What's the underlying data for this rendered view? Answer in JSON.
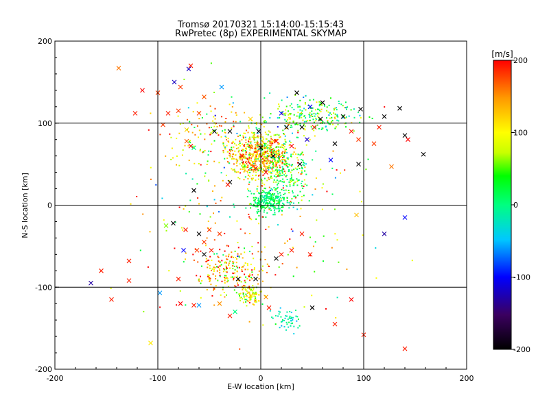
{
  "chart_data": {
    "type": "scatter",
    "title": "Tromsø 20170321 15:14:00-15:15:43",
    "subtitle": "RwPretec (8p) EXPERIMENTAL SKYMAP",
    "xlabel": "E-W location [km]",
    "ylabel": "N-S location [km]",
    "xlim": [
      -200,
      200
    ],
    "ylim": [
      -200,
      200
    ],
    "xticks": [
      "-200",
      "-100",
      "0",
      "100",
      "200"
    ],
    "yticks": [
      "-200",
      "-100",
      "0",
      "100",
      "200"
    ],
    "grid": "major lines at -100, 0, 100",
    "colorbar": {
      "label": "[m/s]",
      "range": [
        -200,
        200
      ],
      "ticks": [
        "-200",
        "-100",
        "0",
        "100",
        "200"
      ],
      "colormap": [
        "#000000",
        "#3b0060",
        "#0000ff",
        "#00c8ff",
        "#00ff80",
        "#00ff00",
        "#c8ff00",
        "#ffff00",
        "#ff9900",
        "#ff0000"
      ]
    },
    "clusters": [
      {
        "cx": 0,
        "cy": 60,
        "sx": 22,
        "sy": 20,
        "n": 650,
        "vmean": 120,
        "vsd": 70
      },
      {
        "cx": 8,
        "cy": 5,
        "sx": 12,
        "sy": 10,
        "n": 260,
        "vmean": 10,
        "vsd": 25
      },
      {
        "cx": 50,
        "cy": 110,
        "sx": 30,
        "sy": 15,
        "n": 230,
        "vmean": 40,
        "vsd": 70
      },
      {
        "cx": 25,
        "cy": 40,
        "sx": 15,
        "sy": 25,
        "n": 180,
        "vmean": 20,
        "vsd": 45
      },
      {
        "cx": -30,
        "cy": -80,
        "sx": 25,
        "sy": 22,
        "n": 220,
        "vmean": 140,
        "vsd": 80
      },
      {
        "cx": -10,
        "cy": -110,
        "sx": 8,
        "sy": 8,
        "n": 90,
        "vmean": 90,
        "vsd": 50
      },
      {
        "cx": 25,
        "cy": -140,
        "sx": 10,
        "sy": 10,
        "n": 50,
        "vmean": -10,
        "vsd": 30
      },
      {
        "cx": -40,
        "cy": 90,
        "sx": 35,
        "sy": 25,
        "n": 130,
        "vmean": 100,
        "vsd": 90
      },
      {
        "cx": 0,
        "cy": 0,
        "sx": 80,
        "sy": 90,
        "n": 260,
        "vmean": 100,
        "vsd": 120
      }
    ],
    "crosses": [
      {
        "x": -138,
        "y": 167,
        "v": 160
      },
      {
        "x": -68,
        "y": 170,
        "v": 190
      },
      {
        "x": -70,
        "y": 166,
        "v": -120
      },
      {
        "x": -84,
        "y": 150,
        "v": -120
      },
      {
        "x": -78,
        "y": 144,
        "v": 180
      },
      {
        "x": -55,
        "y": 132,
        "v": 170
      },
      {
        "x": -38,
        "y": 144,
        "v": -60
      },
      {
        "x": -100,
        "y": 137,
        "v": 180
      },
      {
        "x": -115,
        "y": 140,
        "v": 200
      },
      {
        "x": -122,
        "y": 112,
        "v": 190
      },
      {
        "x": -90,
        "y": 112,
        "v": 190
      },
      {
        "x": -80,
        "y": 115,
        "v": 180
      },
      {
        "x": -60,
        "y": 112,
        "v": 180
      },
      {
        "x": -95,
        "y": 98,
        "v": 180
      },
      {
        "x": -72,
        "y": 92,
        "v": 120
      },
      {
        "x": -72,
        "y": 78,
        "v": 170
      },
      {
        "x": -68,
        "y": 72,
        "v": 200
      },
      {
        "x": -65,
        "y": 70,
        "v": 0
      },
      {
        "x": -65,
        "y": 18,
        "v": -200
      },
      {
        "x": -30,
        "y": 28,
        "v": -200
      },
      {
        "x": -32,
        "y": 25,
        "v": 190
      },
      {
        "x": -45,
        "y": 90,
        "v": -200
      },
      {
        "x": -30,
        "y": 90,
        "v": -200
      },
      {
        "x": -10,
        "y": 105,
        "v": 120
      },
      {
        "x": 35,
        "y": 137,
        "v": -200
      },
      {
        "x": 60,
        "y": 125,
        "v": -200
      },
      {
        "x": 58,
        "y": 105,
        "v": -200
      },
      {
        "x": 52,
        "y": 95,
        "v": 190
      },
      {
        "x": 80,
        "y": 108,
        "v": -200
      },
      {
        "x": 97,
        "y": 117,
        "v": -200
      },
      {
        "x": 120,
        "y": 108,
        "v": -200
      },
      {
        "x": 135,
        "y": 118,
        "v": -200
      },
      {
        "x": 115,
        "y": 95,
        "v": 190
      },
      {
        "x": 140,
        "y": 85,
        "v": -200
      },
      {
        "x": 88,
        "y": 90,
        "v": 190
      },
      {
        "x": 95,
        "y": 80,
        "v": 180
      },
      {
        "x": 110,
        "y": 75,
        "v": 180
      },
      {
        "x": 143,
        "y": 80,
        "v": 200
      },
      {
        "x": 158,
        "y": 62,
        "v": -200
      },
      {
        "x": 127,
        "y": 47,
        "v": 160
      },
      {
        "x": 95,
        "y": 50,
        "v": -200
      },
      {
        "x": 72,
        "y": 75,
        "v": -200
      },
      {
        "x": 68,
        "y": 55,
        "v": -100
      },
      {
        "x": 93,
        "y": -12,
        "v": 130
      },
      {
        "x": 140,
        "y": -15,
        "v": -100
      },
      {
        "x": 120,
        "y": -35,
        "v": -130
      },
      {
        "x": -92,
        "y": -25,
        "v": 60
      },
      {
        "x": -85,
        "y": -22,
        "v": -200
      },
      {
        "x": -73,
        "y": -30,
        "v": 190
      },
      {
        "x": -60,
        "y": -35,
        "v": -200
      },
      {
        "x": -50,
        "y": -30,
        "v": 180
      },
      {
        "x": -40,
        "y": -35,
        "v": 180
      },
      {
        "x": -55,
        "y": -45,
        "v": 180
      },
      {
        "x": -62,
        "y": -55,
        "v": 180
      },
      {
        "x": -55,
        "y": -60,
        "v": -200
      },
      {
        "x": -48,
        "y": -55,
        "v": 190
      },
      {
        "x": -75,
        "y": -55,
        "v": -100
      },
      {
        "x": -155,
        "y": -80,
        "v": 190
      },
      {
        "x": -128,
        "y": -68,
        "v": 190
      },
      {
        "x": -165,
        "y": -95,
        "v": -130
      },
      {
        "x": -128,
        "y": -92,
        "v": 190
      },
      {
        "x": -145,
        "y": -115,
        "v": 190
      },
      {
        "x": -98,
        "y": -107,
        "v": -60
      },
      {
        "x": -80,
        "y": -90,
        "v": 190
      },
      {
        "x": -78,
        "y": -120,
        "v": 200
      },
      {
        "x": -65,
        "y": -122,
        "v": 190
      },
      {
        "x": -60,
        "y": -122,
        "v": -60
      },
      {
        "x": -40,
        "y": -120,
        "v": 150
      },
      {
        "x": -30,
        "y": -135,
        "v": 190
      },
      {
        "x": -25,
        "y": -130,
        "v": 0
      },
      {
        "x": -22,
        "y": -90,
        "v": -200
      },
      {
        "x": -5,
        "y": -90,
        "v": -200
      },
      {
        "x": 5,
        "y": -112,
        "v": 150
      },
      {
        "x": 8,
        "y": -125,
        "v": 190
      },
      {
        "x": 15,
        "y": -65,
        "v": -200
      },
      {
        "x": 20,
        "y": -60,
        "v": 190
      },
      {
        "x": 30,
        "y": -55,
        "v": 190
      },
      {
        "x": 40,
        "y": -35,
        "v": 190
      },
      {
        "x": 48,
        "y": -60,
        "v": 190
      },
      {
        "x": 50,
        "y": -125,
        "v": -200
      },
      {
        "x": 88,
        "y": -115,
        "v": 200
      },
      {
        "x": 72,
        "y": -145,
        "v": 190
      },
      {
        "x": 100,
        "y": -158,
        "v": 190
      },
      {
        "x": 140,
        "y": -175,
        "v": 190
      },
      {
        "x": -107,
        "y": -168,
        "v": 110
      },
      {
        "x": 0,
        "y": 70,
        "v": -200
      },
      {
        "x": 12,
        "y": 60,
        "v": -200
      },
      {
        "x": 38,
        "y": 50,
        "v": -200
      },
      {
        "x": -5,
        "y": 45,
        "v": 200
      },
      {
        "x": 15,
        "y": 78,
        "v": 200
      },
      {
        "x": 30,
        "y": 72,
        "v": 200
      },
      {
        "x": -18,
        "y": 60,
        "v": 200
      },
      {
        "x": 5,
        "y": 40,
        "v": 200
      },
      {
        "x": 25,
        "y": 95,
        "v": -200
      },
      {
        "x": 40,
        "y": 95,
        "v": -200
      },
      {
        "x": -2,
        "y": 90,
        "v": -200
      },
      {
        "x": 45,
        "y": 80,
        "v": -120
      },
      {
        "x": 48,
        "y": 120,
        "v": -100
      },
      {
        "x": 20,
        "y": 112,
        "v": -100
      }
    ]
  }
}
